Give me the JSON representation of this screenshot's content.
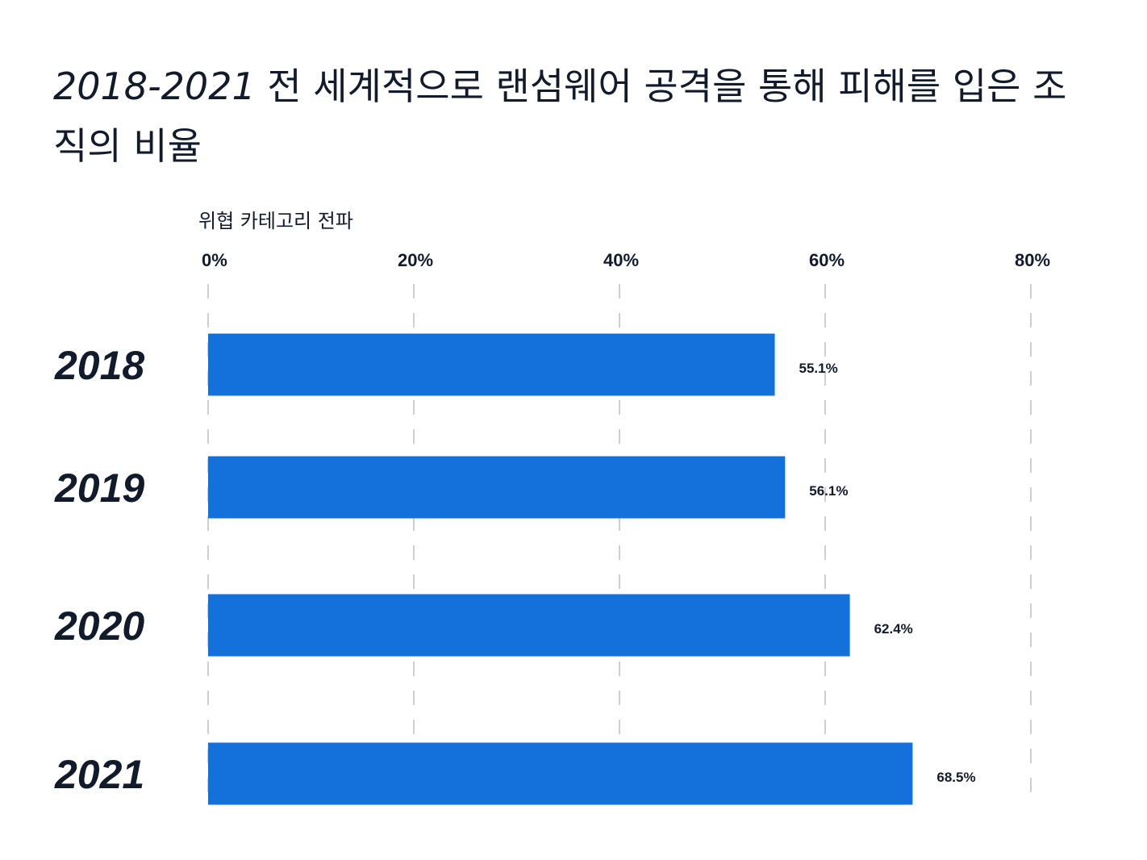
{
  "chart_data": {
    "type": "bar",
    "orientation": "horizontal",
    "title_year": "2018-2021",
    "title_text": "전 세계적으로 랜섬웨어 공격을 통해 피해를 입은 조직의 비율",
    "subtitle": "위협 카테고리 전파",
    "categories": [
      "2018",
      "2019",
      "2020",
      "2021"
    ],
    "values": [
      55.1,
      56.1,
      62.4,
      68.5
    ],
    "value_labels": [
      "55.1%",
      "56.1%",
      "62.4%",
      "68.5%"
    ],
    "xlim": [
      0,
      80
    ],
    "x_ticks": [
      0,
      20,
      40,
      60,
      80
    ],
    "x_tick_labels": [
      "0%",
      "20%",
      "40%",
      "60%",
      "80%"
    ],
    "grid": true,
    "bar_color": "#1471dc"
  }
}
